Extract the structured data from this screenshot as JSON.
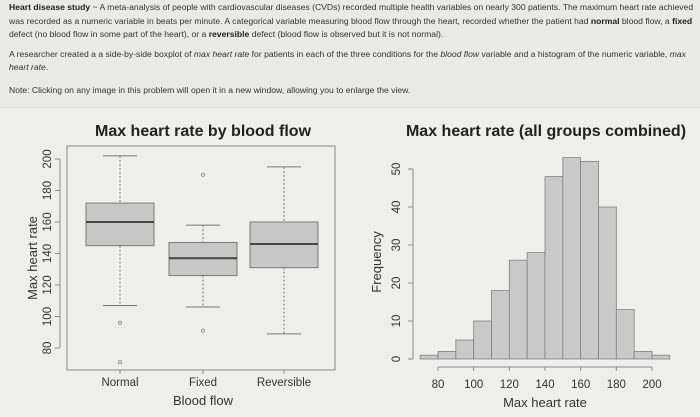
{
  "intro": {
    "study_title": "Heart disease study",
    "dash": " ~ ",
    "p1_a": "A meta-analysis of people with cardiovascular diseases (CVDs) recorded multiple health variables on nearly 300 patients. The maximum heart rate achieved was recorded as a numeric variable in beats per minute. A categorical variable measuring blood flow through the heart, recorded whether the patient had ",
    "p1_normal": "normal",
    "p1_b": " blood flow, a ",
    "p1_fixed": "fixed",
    "p1_c": " defect (no blood flow in some part of the heart), or a ",
    "p1_reversible": "reversible",
    "p1_d": " defect (blood flow is observed but it is not normal).",
    "p2_a": "A researcher created a a side-by-side boxplot of ",
    "p2_var1": "max heart rate",
    "p2_b": " for patients in each of the three conditions for the ",
    "p2_var2": "blood flow",
    "p2_c": " variable and a histogram of the numeric variable, ",
    "p2_var3": "max heart rate",
    "p2_d": ".",
    "note": "Note: Clicking on any image in this problem will open it in a new window, allowing you to enlarge the view."
  },
  "colors": {
    "box_fill": "#c7c7c7",
    "box_border": "#7a7a7a",
    "median": "#444444",
    "bar_fill": "#c9c9c9",
    "bar_border": "#808080",
    "axis": "#8a8a8a"
  },
  "chart_data": [
    {
      "type": "boxplot",
      "title": "Max heart rate by blood flow",
      "xlabel": "Blood flow",
      "ylabel": "Max heart rate",
      "ylim": [
        65,
        205
      ],
      "yticks": [
        80,
        100,
        120,
        140,
        160,
        180,
        200
      ],
      "categories": [
        "Normal",
        "Fixed",
        "Reversible"
      ],
      "boxes": [
        {
          "name": "Normal",
          "whisker_low": 107,
          "q1": 145,
          "median": 160,
          "q3": 172,
          "whisker_high": 202,
          "outliers": [
            96,
            71
          ]
        },
        {
          "name": "Fixed",
          "whisker_low": 106,
          "q1": 126,
          "median": 137,
          "q3": 147,
          "whisker_high": 158,
          "outliers": [
            190,
            91
          ]
        },
        {
          "name": "Reversible",
          "whisker_low": 89,
          "q1": 131,
          "median": 146,
          "q3": 160,
          "whisker_high": 195,
          "outliers": []
        }
      ]
    },
    {
      "type": "histogram",
      "title": "Max heart rate (all groups combined)",
      "xlabel": "Max heart rate",
      "ylabel": "Frequency",
      "xlim": [
        70,
        210
      ],
      "ylim": [
        0,
        53
      ],
      "xticks": [
        80,
        100,
        120,
        140,
        160,
        180,
        200
      ],
      "yticks": [
        0,
        10,
        20,
        30,
        40,
        50
      ],
      "bin_width": 10,
      "bins": [
        {
          "start": 70,
          "end": 80,
          "count": 1
        },
        {
          "start": 80,
          "end": 90,
          "count": 2
        },
        {
          "start": 90,
          "end": 100,
          "count": 5
        },
        {
          "start": 100,
          "end": 110,
          "count": 10
        },
        {
          "start": 110,
          "end": 120,
          "count": 18
        },
        {
          "start": 120,
          "end": 130,
          "count": 26
        },
        {
          "start": 130,
          "end": 140,
          "count": 28
        },
        {
          "start": 140,
          "end": 150,
          "count": 48
        },
        {
          "start": 150,
          "end": 160,
          "count": 53
        },
        {
          "start": 160,
          "end": 170,
          "count": 52
        },
        {
          "start": 170,
          "end": 180,
          "count": 40
        },
        {
          "start": 180,
          "end": 190,
          "count": 13
        },
        {
          "start": 190,
          "end": 200,
          "count": 2
        },
        {
          "start": 200,
          "end": 210,
          "count": 1
        }
      ]
    }
  ]
}
